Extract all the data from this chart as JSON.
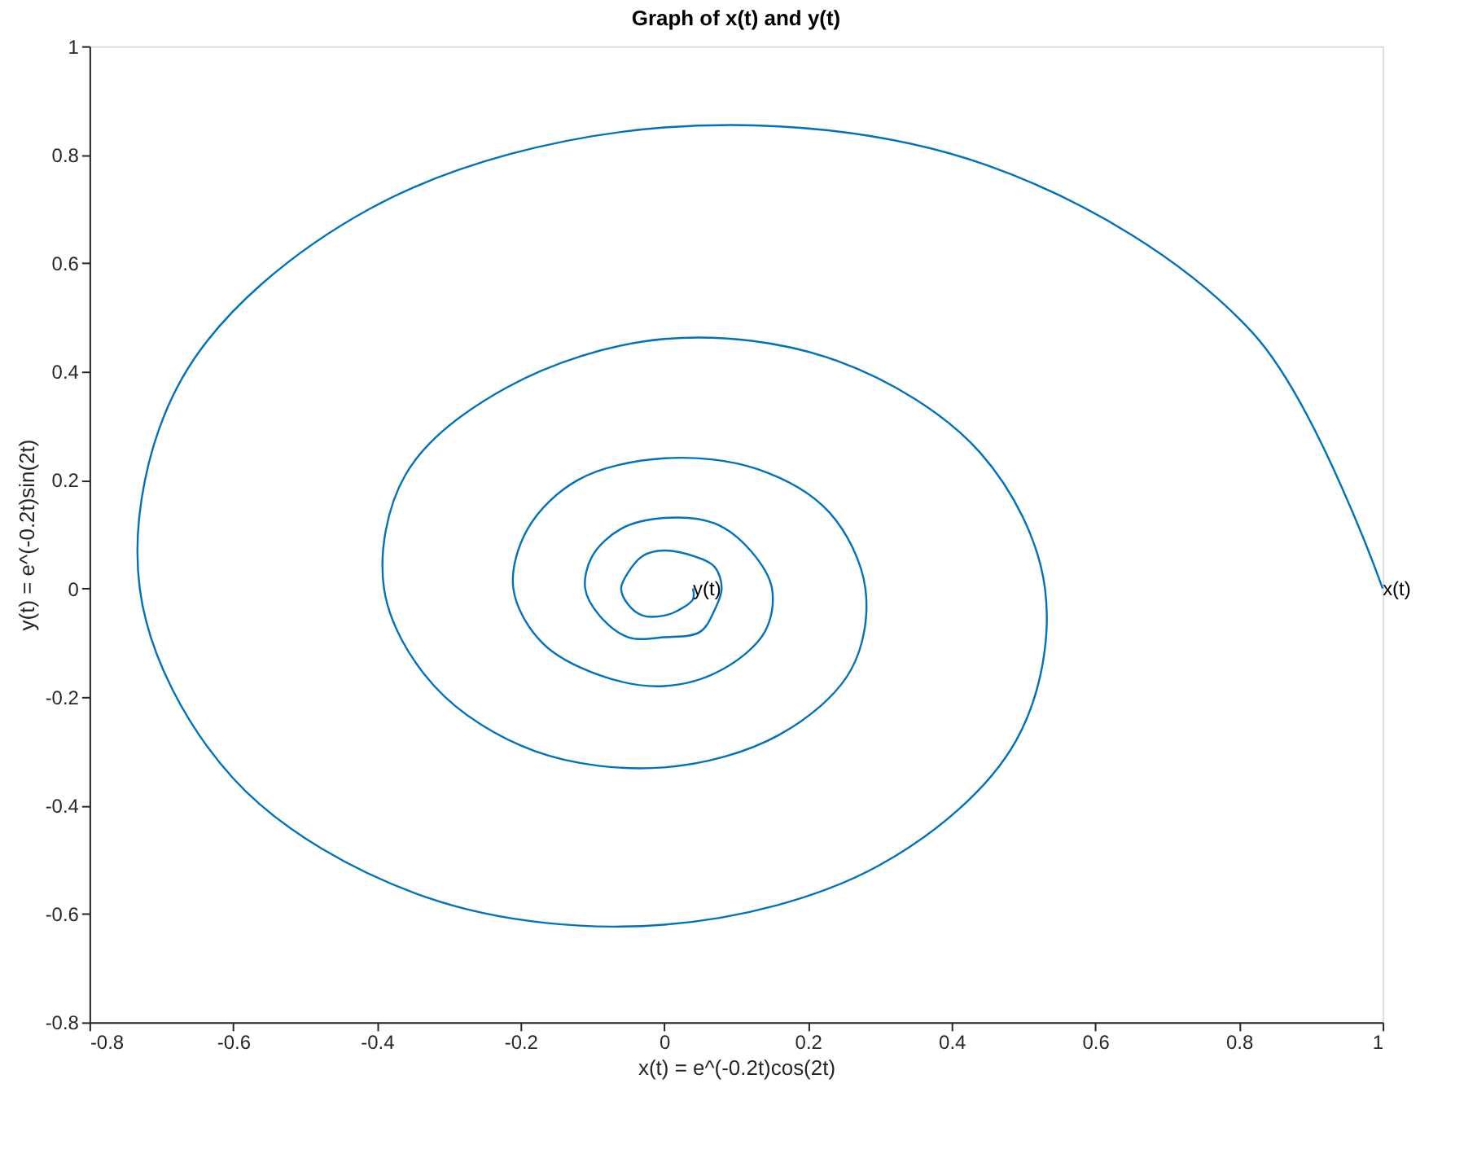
{
  "chart_data": {
    "type": "line",
    "title": "Graph of x(t) and y(t)",
    "xlabel": "x(t) = e^(-0.2t)cos(2t)",
    "ylabel": "y(t) = e^(-0.2t)sin(2t)",
    "xlim": [
      -0.8,
      1
    ],
    "xticks": [
      -0.8,
      -0.6,
      -0.4,
      -0.2,
      0,
      0.2,
      0.4,
      0.6,
      0.8,
      1
    ],
    "ylim": [
      -0.8,
      1
    ],
    "yticks": [
      -0.8,
      -0.6,
      -0.4,
      -0.2,
      0,
      0.2,
      0.4,
      0.6,
      0.8,
      1
    ],
    "grid": false,
    "marker": "none",
    "line_style": "solid",
    "series": [
      {
        "color": "#0072bd",
        "x": [
          1,
          0.82,
          0.45,
          0,
          -0.41,
          -0.67,
          -0.73,
          -0.6,
          -0.33,
          0,
          0.3,
          0.49,
          0.53,
          0.44,
          0.24,
          0,
          -0.22,
          -0.36,
          -0.39,
          -0.32,
          -0.18,
          0,
          0.16,
          0.26,
          0.28,
          0.23,
          0.13,
          0,
          -0.12,
          -0.19,
          -0.21,
          -0.17,
          -0.09,
          0,
          0.08,
          0.14,
          0.15,
          0.12,
          0.07,
          0,
          -0.06,
          -0.1,
          -0.11,
          -0.09,
          -0.05,
          0,
          0.05,
          0.07,
          0.08,
          0.07,
          0.04,
          0,
          -0.03,
          -0.05,
          -0.06,
          -0.05,
          -0.03,
          0,
          0.02,
          0.04,
          0.04
        ],
        "values": [
          0,
          0.47,
          0.78,
          0.85,
          0.7,
          0.39,
          0,
          -0.35,
          -0.57,
          -0.62,
          -0.51,
          -0.28,
          0,
          0.25,
          0.42,
          0.46,
          0.37,
          0.21,
          0,
          -0.18,
          -0.3,
          -0.33,
          -0.27,
          -0.15,
          0,
          0.14,
          0.22,
          0.24,
          0.2,
          0.11,
          0,
          -0.1,
          -0.16,
          -0.18,
          -0.15,
          -0.08,
          0,
          0.07,
          0.12,
          0.13,
          0.11,
          0.06,
          0,
          -0.05,
          -0.09,
          -0.09,
          -0.08,
          -0.04,
          0,
          0.04,
          0.06,
          0.07,
          0.06,
          0.03,
          0,
          -0.03,
          -0.05,
          -0.05,
          -0.04,
          -0.02,
          0
        ]
      }
    ],
    "annotations": [
      {
        "text": "y(t)",
        "x": 0.04,
        "y": 0
      },
      {
        "text": "x(t)",
        "x": 1,
        "y": 0
      }
    ]
  }
}
